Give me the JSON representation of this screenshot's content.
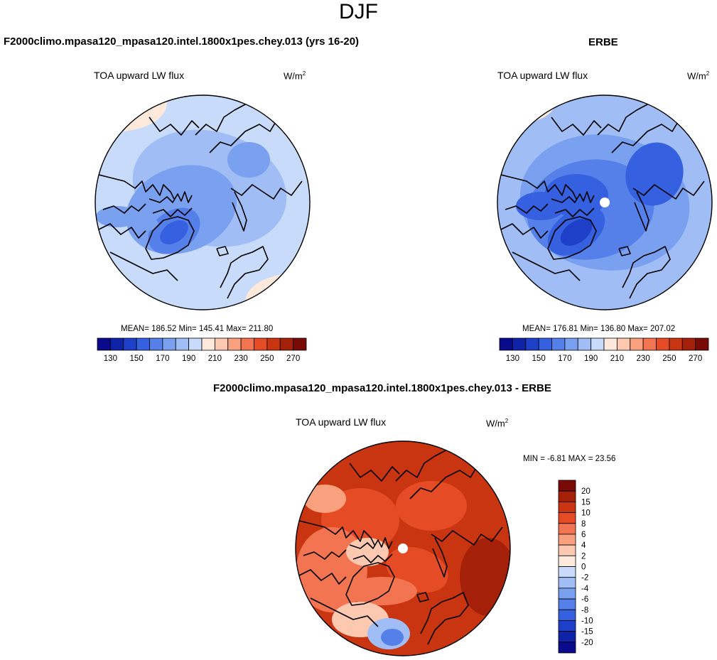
{
  "figure": {
    "title": "DJF"
  },
  "chart_data": [
    {
      "type": "heatmap",
      "projection": "north-polar-stereographic",
      "panel_title": "F2000climo.mpasa120_mpasa120.intel.1800x1pes.chey.013 (yrs 16-20)",
      "subtitle": "TOA upward LW flux",
      "units_text": "W/m",
      "units_exp": "2",
      "stats_text": "MEAN= 186.52  Min= 145.41  Max= 211.80",
      "mean": 186.52,
      "min": 145.41,
      "max": 211.8,
      "colorbar": {
        "levels": [
          130,
          140,
          150,
          160,
          170,
          180,
          190,
          200,
          210,
          220,
          230,
          240,
          250,
          260,
          270
        ],
        "tick_labels": [
          "130",
          "150",
          "170",
          "190",
          "210",
          "230",
          "250",
          "270"
        ],
        "colors": [
          "#0a0a8c",
          "#0f23a8",
          "#1e40c8",
          "#3560e0",
          "#5580ea",
          "#7aa0f0",
          "#a0bdf5",
          "#c8dbfa",
          "#fde8dc",
          "#fcc8b0",
          "#f9a07e",
          "#f27450",
          "#e54b25",
          "#c93510",
          "#a52008",
          "#7a0a05"
        ]
      }
    },
    {
      "type": "heatmap",
      "projection": "north-polar-stereographic",
      "panel_title": "ERBE",
      "subtitle": "TOA upward LW flux",
      "units_text": "W/m",
      "units_exp": "2",
      "stats_text": "MEAN= 176.81  Min= 136.80  Max= 207.02",
      "mean": 176.81,
      "min": 136.8,
      "max": 207.02,
      "colorbar": {
        "levels": [
          130,
          140,
          150,
          160,
          170,
          180,
          190,
          200,
          210,
          220,
          230,
          240,
          250,
          260,
          270
        ],
        "tick_labels": [
          "130",
          "150",
          "170",
          "190",
          "210",
          "230",
          "250",
          "270"
        ],
        "colors": [
          "#0a0a8c",
          "#0f23a8",
          "#1e40c8",
          "#3560e0",
          "#5580ea",
          "#7aa0f0",
          "#a0bdf5",
          "#c8dbfa",
          "#fde8dc",
          "#fcc8b0",
          "#f9a07e",
          "#f27450",
          "#e54b25",
          "#c93510",
          "#a52008",
          "#7a0a05"
        ]
      }
    },
    {
      "type": "heatmap",
      "projection": "north-polar-stereographic",
      "panel_title": "F2000climo.mpasa120_mpasa120.intel.1800x1pes.chey.013 - ERBE",
      "subtitle": "TOA upward LW flux",
      "units_text": "W/m",
      "units_exp": "2",
      "stats_text": "MIN =  -6.81 MAX =  23.56",
      "min": -6.81,
      "max": 23.56,
      "colorbar": {
        "labels": [
          "20",
          "15",
          "10",
          "8",
          "6",
          "4",
          "2",
          "0",
          "-2",
          "-4",
          "-6",
          "-8",
          "-10",
          "-15",
          "-20"
        ],
        "colors": [
          "#7a0a05",
          "#a52008",
          "#c93510",
          "#e54b25",
          "#f27450",
          "#f9a07e",
          "#fcc8b0",
          "#fde8dc",
          "#c8dbfa",
          "#a0bdf5",
          "#7aa0f0",
          "#5580ea",
          "#3560e0",
          "#1e40c8",
          "#0f23a8",
          "#0a0a8c"
        ]
      }
    }
  ]
}
